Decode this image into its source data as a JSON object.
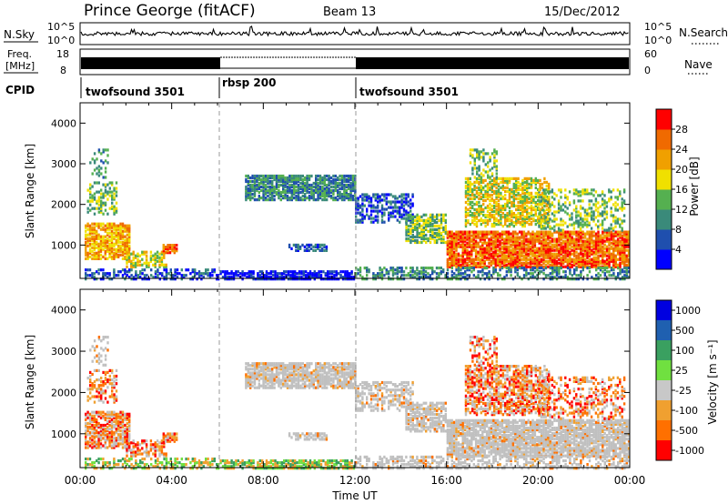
{
  "header": {
    "title": "Prince George (fitACF)",
    "beam": "Beam 13",
    "date": "15/Dec/2012"
  },
  "strips": {
    "nsky_label": "N.Sky",
    "nsearch_label": "N.Search",
    "nsky_ticks": [
      "10^5",
      "10^0"
    ],
    "freq_label_line1": "Freq.",
    "freq_label_line2": "[MHz]",
    "freq_ticks": [
      "18",
      "8"
    ],
    "nave_label": "Nave",
    "nave_ticks": [
      "60",
      "0"
    ],
    "cpid_label": "CPID",
    "cpid_segments": [
      {
        "label": "twofsound 3501",
        "start_h": 0,
        "end_h": 6
      },
      {
        "label": "rbsp 200",
        "start_h": 6,
        "end_h": 12
      },
      {
        "label": "twofsound 3501",
        "start_h": 12,
        "end_h": 24
      }
    ]
  },
  "colors": {
    "power_scale": [
      "#0000ff",
      "#1f4fae",
      "#3a8a7a",
      "#55b050",
      "#f0e000",
      "#f0a000",
      "#f06a00",
      "#ff0000"
    ],
    "velocity_scale": [
      "#0000e0",
      "#1f60b0",
      "#3aa060",
      "#70e040",
      "#c8c8c8",
      "#f0a030",
      "#ff7000",
      "#ff0000"
    ],
    "ground_scatter": "#c0c0c0"
  },
  "chart_data": [
    {
      "type": "heatmap",
      "name": "power-panel",
      "ylabel": "Slant Range [km]",
      "ylim": [
        180,
        4500
      ],
      "xlim_hours": [
        0,
        24
      ],
      "y_ticks": [
        "1000",
        "2000",
        "3000",
        "4000"
      ],
      "colorbar_label": "Power [dB]",
      "colorbar_ticks": [
        "4",
        "8",
        "12",
        "16",
        "20",
        "24",
        "28"
      ],
      "clim": [
        0,
        32
      ]
    },
    {
      "type": "heatmap",
      "name": "velocity-panel",
      "ylabel": "Slant Range [km]",
      "ylim": [
        180,
        4500
      ],
      "xlim_hours": [
        0,
        24
      ],
      "y_ticks": [
        "1000",
        "2000",
        "3000",
        "4000"
      ],
      "x_ticks": [
        "00:00",
        "04:00",
        "08:00",
        "12:00",
        "16:00",
        "20:00",
        "00:00"
      ],
      "xlabel": "Time UT",
      "colorbar_label": "Velocity [m s⁻¹]",
      "colorbar_ticks": [
        "1000",
        "500",
        "100",
        "25",
        "-25",
        "-100",
        "-500",
        "-1000"
      ]
    }
  ]
}
